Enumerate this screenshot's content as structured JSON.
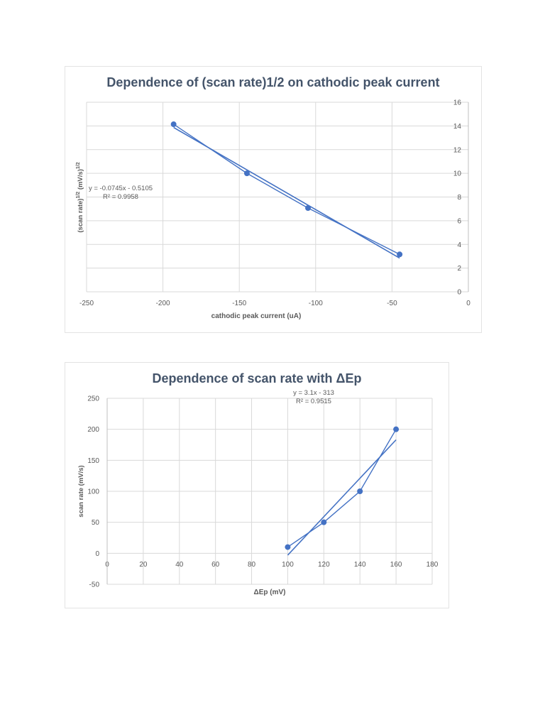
{
  "chart_data": [
    {
      "type": "scatter",
      "title": "Dependence of (scan rate)1/2 on cathodic peak current",
      "xlabel": "cathodic peak current (uA)",
      "ylabel": "(scan rate)^1/2 (mV/s)^1/2",
      "ylabel_parts": {
        "a": "(scan rate)",
        "b": "1/2",
        "c": "(mV/s)",
        "d": "1/2"
      },
      "xlim": [
        -250,
        0
      ],
      "ylim": [
        0,
        16
      ],
      "x_ticks": [
        "-250",
        "-200",
        "-150",
        "-100",
        "-50",
        "0"
      ],
      "y_ticks": [
        "0",
        "2",
        "4",
        "6",
        "8",
        "10",
        "12",
        "14",
        "16"
      ],
      "y_axis_position": "right",
      "grid": true,
      "series": [
        {
          "name": "data",
          "x": [
            -193,
            -145,
            -105,
            -45
          ],
          "y": [
            14.14,
            10.0,
            7.07,
            3.16
          ],
          "lines": true,
          "markers": true
        }
      ],
      "trendline": {
        "equation": "y = -0.0745x - 0.5105",
        "r2": "R² = 0.9958",
        "slope": -0.0745,
        "intercept": -0.5105,
        "x_range": [
          -193,
          -45
        ]
      }
    },
    {
      "type": "scatter",
      "title": "Dependence of scan rate with ΔEp",
      "xlabel": "ΔEp (mV)",
      "ylabel": "scan rate (mV/s)",
      "xlim": [
        0,
        180
      ],
      "ylim": [
        -50,
        250
      ],
      "x_ticks": [
        "0",
        "20",
        "40",
        "60",
        "80",
        "100",
        "120",
        "140",
        "160",
        "180"
      ],
      "y_ticks": [
        "-50",
        "0",
        "50",
        "100",
        "150",
        "200",
        "250"
      ],
      "grid": true,
      "series": [
        {
          "name": "data",
          "x": [
            100,
            120,
            140,
            160
          ],
          "y": [
            10,
            50,
            100,
            200
          ],
          "lines": true,
          "markers": true
        }
      ],
      "trendline": {
        "equation": "y = 3.1x - 313",
        "r2": "R² = 0.9515",
        "slope": 3.1,
        "intercept": -313,
        "x_range": [
          100,
          160
        ]
      }
    }
  ],
  "colors": {
    "series": "#4472c4",
    "grid": "#d9d9d9",
    "text": "#595959",
    "title": "#44546a"
  }
}
